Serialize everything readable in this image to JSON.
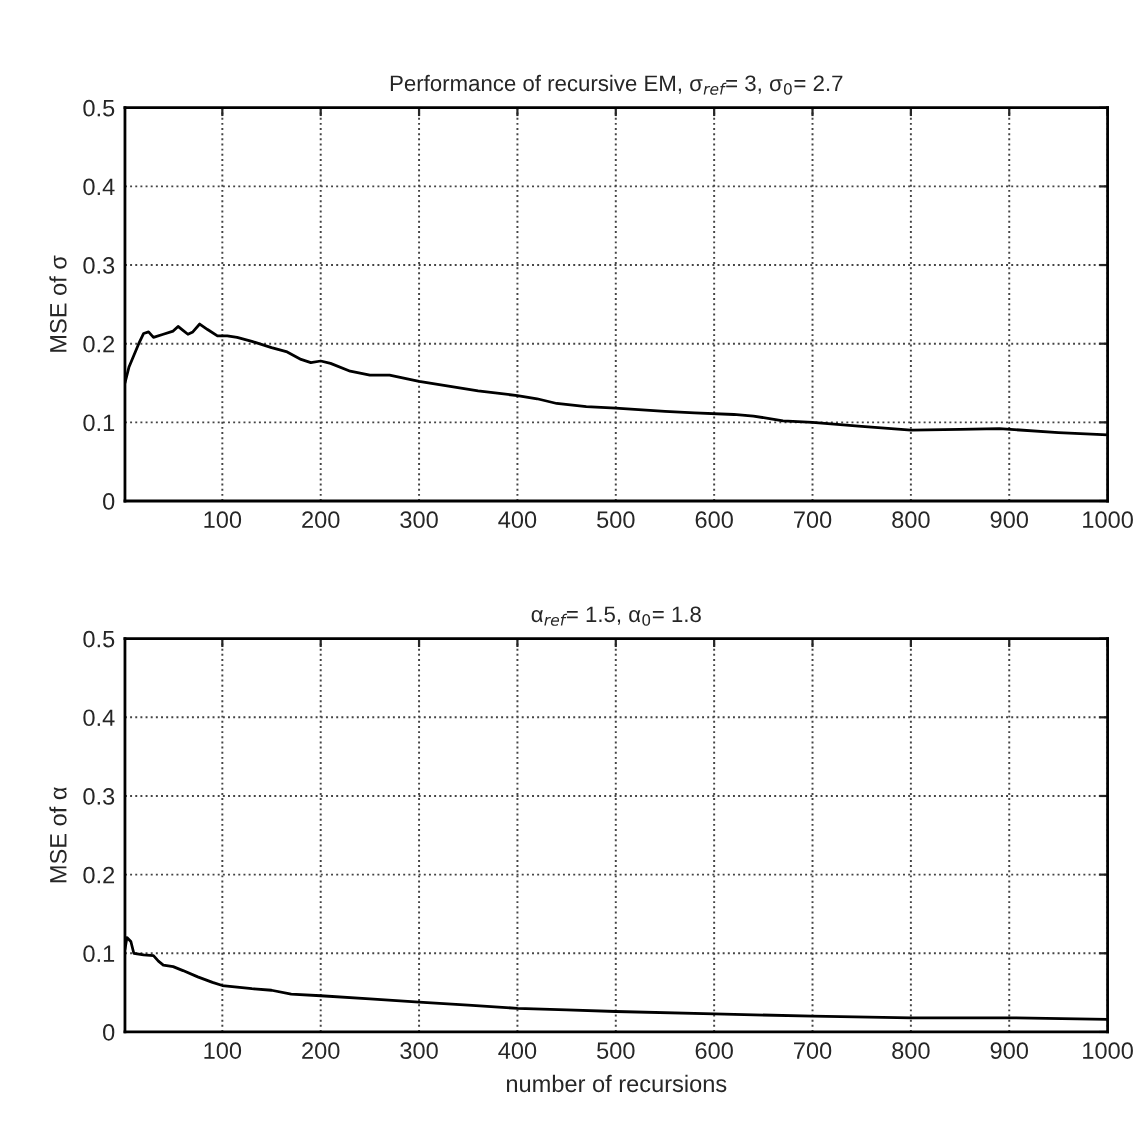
{
  "chart_data": [
    {
      "type": "line",
      "title": "Performance of recursive EM, σ$_{ref}$= 3, σ$_{0}$= 2.7",
      "ylabel": "MSE of σ",
      "xlim": [
        1,
        1000
      ],
      "xticks": [
        100,
        200,
        300,
        400,
        500,
        600,
        700,
        800,
        900,
        1000
      ],
      "ylim": [
        0,
        0.5
      ],
      "yticks": [
        0,
        0.1,
        0.2,
        0.3,
        0.4,
        0.5
      ],
      "grid": true,
      "line_style": "solid",
      "series": [
        {
          "color": "#000000",
          "x": [
            1,
            5,
            10,
            15,
            20,
            25,
            30,
            40,
            50,
            55,
            60,
            65,
            70,
            77,
            85,
            95,
            105,
            115,
            130,
            150,
            165,
            180,
            190,
            200,
            210,
            230,
            250,
            270,
            300,
            330,
            360,
            400,
            420,
            440,
            470,
            500,
            550,
            580,
            620,
            640,
            670,
            700,
            750,
            800,
            850,
            890,
            950,
            1000
          ],
          "values": [
            0.15,
            0.17,
            0.185,
            0.2,
            0.213,
            0.215,
            0.208,
            0.212,
            0.216,
            0.222,
            0.217,
            0.212,
            0.215,
            0.225,
            0.218,
            0.21,
            0.21,
            0.208,
            0.203,
            0.195,
            0.19,
            0.18,
            0.176,
            0.178,
            0.175,
            0.165,
            0.16,
            0.16,
            0.152,
            0.146,
            0.14,
            0.134,
            0.13,
            0.124,
            0.12,
            0.118,
            0.114,
            0.112,
            0.11,
            0.108,
            0.102,
            0.1,
            0.095,
            0.09,
            0.091,
            0.092,
            0.087,
            0.084
          ]
        }
      ]
    },
    {
      "type": "line",
      "title": "α$_{ref}$= 1.5, α$_{0}$= 1.8",
      "xlabel": "number of recursions",
      "ylabel": "MSE of α",
      "xlim": [
        1,
        1000
      ],
      "xticks": [
        100,
        200,
        300,
        400,
        500,
        600,
        700,
        800,
        900,
        1000
      ],
      "ylim": [
        0,
        0.5
      ],
      "yticks": [
        0,
        0.1,
        0.2,
        0.3,
        0.4,
        0.5
      ],
      "grid": true,
      "line_style": "solid",
      "series": [
        {
          "color": "#000000",
          "x": [
            1,
            3,
            7,
            10,
            20,
            30,
            35,
            40,
            50,
            60,
            75,
            90,
            100,
            130,
            150,
            170,
            200,
            250,
            300,
            350,
            400,
            450,
            500,
            600,
            700,
            800,
            900,
            1000
          ],
          "values": [
            0.105,
            0.12,
            0.115,
            0.1,
            0.098,
            0.097,
            0.09,
            0.085,
            0.083,
            0.078,
            0.07,
            0.063,
            0.059,
            0.055,
            0.053,
            0.048,
            0.046,
            0.042,
            0.038,
            0.034,
            0.03,
            0.028,
            0.026,
            0.023,
            0.02,
            0.018,
            0.018,
            0.016
          ]
        }
      ]
    }
  ]
}
